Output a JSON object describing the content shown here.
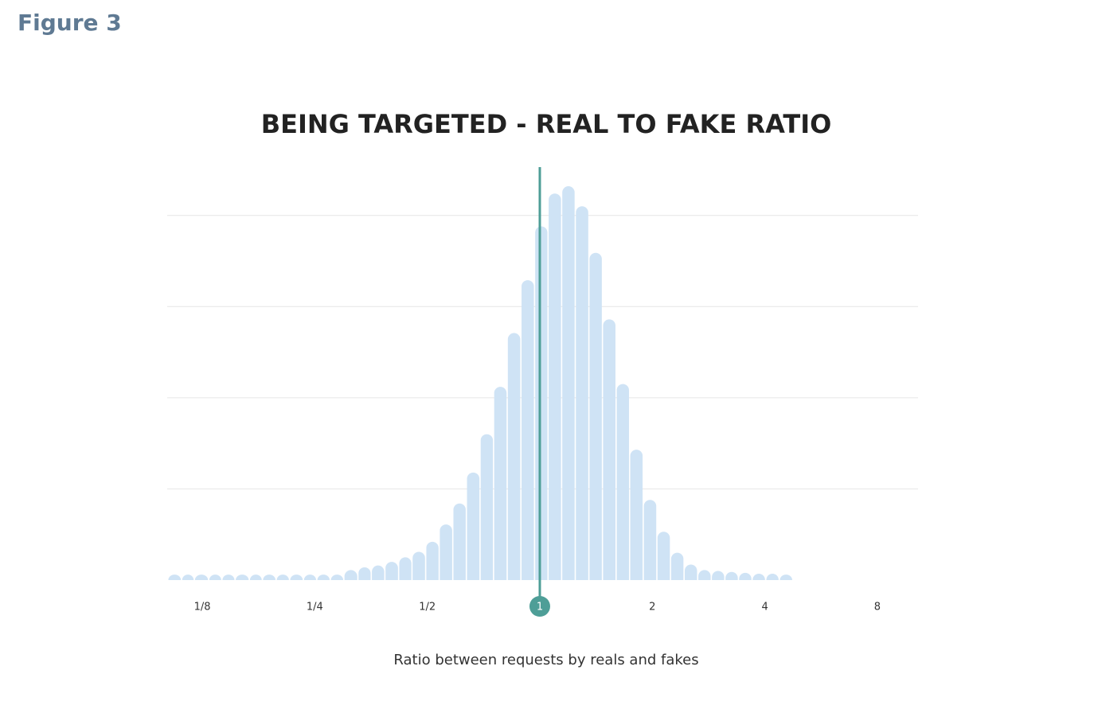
{
  "figure_label": "Figure 3",
  "chart_data": {
    "type": "histogram",
    "title": "BEING TARGETED - REAL TO FAKE RATIO",
    "x_label": "Ratio between requests by reals and fakes",
    "x_scale": "log",
    "xlim": [
      0.1007,
      10.28
    ],
    "xticks": [
      {
        "value": 0.125,
        "label": "1/8"
      },
      {
        "value": 0.25,
        "label": "1/4"
      },
      {
        "value": 0.5,
        "label": "1/2"
      },
      1,
      2,
      4,
      8
    ],
    "ylim": [
      0,
      4.53
    ],
    "yticks": [
      1,
      2,
      3,
      4
    ],
    "grid": true,
    "color": "#cfe3f5",
    "marker_line": {
      "x": 1,
      "color": "#4e9e97"
    },
    "bins": [
      0.101,
      0.11,
      0.119,
      0.13,
      0.141,
      0.153,
      0.167,
      0.181,
      0.197,
      0.214,
      0.233,
      0.253,
      0.275,
      0.299,
      0.326,
      0.354,
      0.385,
      0.419,
      0.455,
      0.495,
      0.538,
      0.585,
      0.636,
      0.692,
      0.752,
      0.818,
      0.89,
      0.968,
      1.052,
      1.144,
      1.244,
      1.353,
      1.471,
      1.6,
      1.739,
      1.891,
      2.057,
      2.237,
      2.432,
      2.645,
      2.876,
      3.127,
      3.4,
      3.697,
      4.021,
      4.372,
      4.754
    ],
    "values": [
      0.06,
      0.06,
      0.06,
      0.06,
      0.06,
      0.06,
      0.06,
      0.06,
      0.06,
      0.06,
      0.06,
      0.06,
      0.06,
      0.11,
      0.14,
      0.16,
      0.2,
      0.25,
      0.31,
      0.42,
      0.61,
      0.84,
      1.18,
      1.6,
      2.12,
      2.71,
      3.29,
      3.88,
      4.24,
      4.32,
      4.1,
      3.59,
      2.86,
      2.15,
      1.43,
      0.88,
      0.53,
      0.3,
      0.17,
      0.11,
      0.1,
      0.09,
      0.08,
      0.07,
      0.07,
      0.06
    ]
  }
}
